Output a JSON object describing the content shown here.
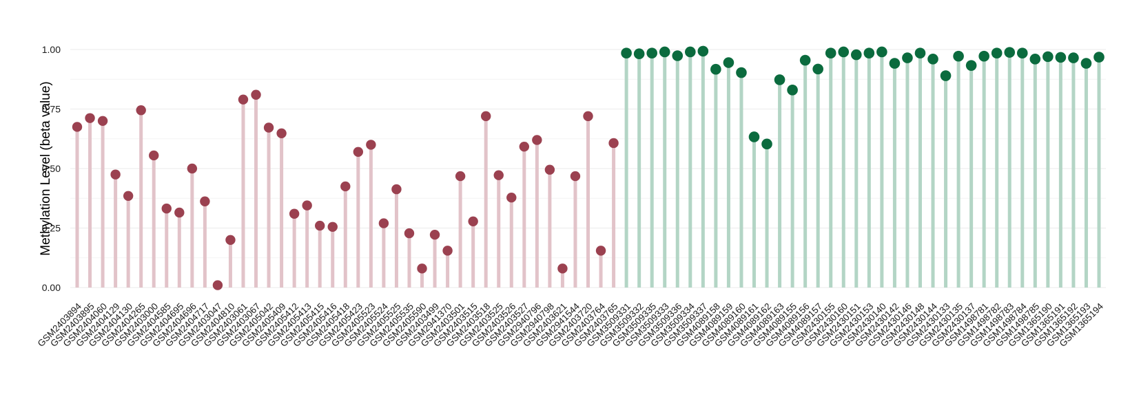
{
  "chart_data": {
    "type": "lollipop",
    "title": "",
    "xlabel": "",
    "ylabel": "Methylation Level (beta value)",
    "ylim": [
      0,
      1
    ],
    "y_ticks": [
      "0.00",
      "0.25",
      "0.50",
      "0.75",
      "1.00"
    ],
    "y_tick_values": [
      0,
      0.25,
      0.5,
      0.75,
      1.0
    ],
    "grid": true,
    "legend": "none",
    "colors": {
      "group1_point": "#9b4150",
      "group1_stem": "#e2c3c9",
      "group2_point": "#0b6b3e",
      "group2_stem": "#b3d5c5"
    },
    "categories": [
      "GSM2403894",
      "GSM2403895",
      "GSM2404060",
      "GSM2404129",
      "GSM2404130",
      "GSM2404265",
      "GSM2403000",
      "GSM2404585",
      "GSM2404695",
      "GSM2404696",
      "GSM2404717",
      "GSM2403047",
      "GSM2404810",
      "GSM2403061",
      "GSM2403067",
      "GSM2405042",
      "GSM2405409",
      "GSM2405412",
      "GSM2405413",
      "GSM2405415",
      "GSM2405416",
      "GSM2405418",
      "GSM2405423",
      "GSM2405523",
      "GSM2405524",
      "GSM2405525",
      "GSM2405535",
      "GSM2405590",
      "GSM2403499",
      "GSM2941370",
      "GSM2403501",
      "GSM2403515",
      "GSM2403518",
      "GSM2403525",
      "GSM2403526",
      "GSM2403527",
      "GSM2940796",
      "GSM2940798",
      "GSM2403621",
      "GSM2941544",
      "GSM2403720",
      "GSM2403764",
      "GSM2403765",
      "GSM3509331",
      "GSM3509332",
      "GSM3509335",
      "GSM3509333",
      "GSM3509336",
      "GSM3509334",
      "GSM3509337",
      "GSM4089158",
      "GSM4089159",
      "GSM4089160",
      "GSM4089161",
      "GSM4089162",
      "GSM4089163",
      "GSM4089155",
      "GSM4089156",
      "GSM4089157",
      "GSM2430155",
      "GSM2430160",
      "GSM2430151",
      "GSM2430153",
      "GSM2430140",
      "GSM2430142",
      "GSM2430146",
      "GSM2430148",
      "GSM2430144",
      "GSM2430133",
      "GSM2430135",
      "GSM2430137",
      "GSM1498781",
      "GSM1498782",
      "GSM1498783",
      "GSM1498784",
      "GSM1498785",
      "GSM1365190",
      "GSM1365191",
      "GSM1365192",
      "GSM1365193",
      "GSM1365194"
    ],
    "values": [
      0.675,
      0.712,
      0.7,
      0.475,
      0.385,
      0.745,
      0.555,
      0.332,
      0.315,
      0.5,
      0.362,
      0.01,
      0.2,
      0.79,
      0.81,
      0.672,
      0.648,
      0.31,
      0.345,
      0.26,
      0.255,
      0.425,
      0.57,
      0.6,
      0.27,
      0.413,
      0.228,
      0.08,
      0.222,
      0.155,
      0.468,
      0.278,
      0.72,
      0.472,
      0.378,
      0.592,
      0.62,
      0.495,
      0.08,
      0.468,
      0.72,
      0.155,
      0.607,
      0.985,
      0.982,
      0.985,
      0.99,
      0.974,
      0.99,
      0.993,
      0.917,
      0.945,
      0.903,
      0.633,
      0.603,
      0.873,
      0.83,
      0.955,
      0.918,
      0.985,
      0.99,
      0.978,
      0.985,
      0.99,
      0.942,
      0.965,
      0.985,
      0.96,
      0.89,
      0.972,
      0.933,
      0.972,
      0.985,
      0.988,
      0.985,
      0.96,
      0.97,
      0.967,
      0.965,
      0.942,
      0.968
    ],
    "groups": [
      1,
      1,
      1,
      1,
      1,
      1,
      1,
      1,
      1,
      1,
      1,
      1,
      1,
      1,
      1,
      1,
      1,
      1,
      1,
      1,
      1,
      1,
      1,
      1,
      1,
      1,
      1,
      1,
      1,
      1,
      1,
      1,
      1,
      1,
      1,
      1,
      1,
      1,
      1,
      1,
      1,
      1,
      1,
      2,
      2,
      2,
      2,
      2,
      2,
      2,
      2,
      2,
      2,
      2,
      2,
      2,
      2,
      2,
      2,
      2,
      2,
      2,
      2,
      2,
      2,
      2,
      2,
      2,
      2,
      2,
      2,
      2,
      2,
      2,
      2,
      2,
      2,
      2,
      2,
      2,
      2
    ]
  }
}
